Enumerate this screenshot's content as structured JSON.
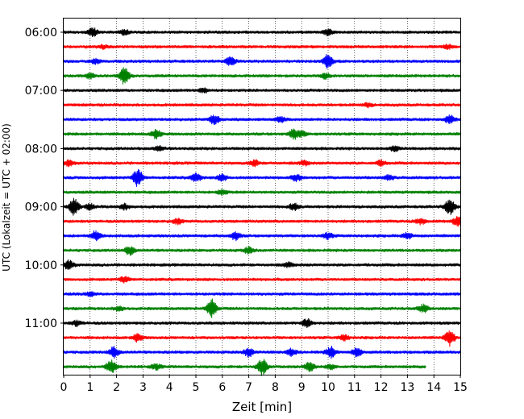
{
  "chart_data": {
    "type": "line",
    "title": "",
    "xlabel": "Zeit  [min]",
    "ylabel": "UTC (Lokalzeit = UTC + 02:00)",
    "xlim": [
      0,
      15
    ],
    "x_ticks": [
      0,
      1,
      2,
      3,
      4,
      5,
      6,
      7,
      8,
      9,
      10,
      11,
      12,
      13,
      14,
      15
    ],
    "x_tick_labels": [
      "0",
      "1",
      "2",
      "3",
      "4",
      "5",
      "6",
      "7",
      "8",
      "9",
      "10",
      "11",
      "12",
      "13",
      "14",
      "15"
    ],
    "y_tick_labels": [
      "06:00",
      "07:00",
      "08:00",
      "09:00",
      "10:00",
      "11:00"
    ],
    "grid": "vertical dotted",
    "trace_interval_min": 15,
    "color_cycle": [
      "#000000",
      "#ff0000",
      "#0000ff",
      "#008000"
    ],
    "traces": [
      {
        "start": "06:00",
        "end_min": 15,
        "events": [
          {
            "t": 1.1,
            "a": 0.9
          },
          {
            "t": 10.0,
            "a": 0.7
          },
          {
            "t": 2.3,
            "a": 0.5
          }
        ]
      },
      {
        "start": "06:15",
        "end_min": 15,
        "events": [
          {
            "t": 1.5,
            "a": 0.4
          },
          {
            "t": 14.5,
            "a": 0.5
          }
        ]
      },
      {
        "start": "06:30",
        "end_min": 15,
        "events": [
          {
            "t": 6.3,
            "a": 1.0
          },
          {
            "t": 10.0,
            "a": 1.6
          },
          {
            "t": 1.2,
            "a": 0.5
          }
        ]
      },
      {
        "start": "06:45",
        "end_min": 15,
        "events": [
          {
            "t": 2.3,
            "a": 1.9
          },
          {
            "t": 1.0,
            "a": 0.6
          },
          {
            "t": 9.9,
            "a": 0.6
          }
        ]
      },
      {
        "start": "07:00",
        "end_min": 15,
        "events": [
          {
            "t": 5.3,
            "a": 0.5
          }
        ]
      },
      {
        "start": "07:15",
        "end_min": 15,
        "events": [
          {
            "t": 11.5,
            "a": 0.4
          }
        ]
      },
      {
        "start": "07:30",
        "end_min": 15,
        "events": [
          {
            "t": 5.7,
            "a": 1.2
          },
          {
            "t": 8.2,
            "a": 0.6
          },
          {
            "t": 14.6,
            "a": 0.9
          }
        ]
      },
      {
        "start": "07:45",
        "end_min": 15,
        "events": [
          {
            "t": 3.5,
            "a": 1.0
          },
          {
            "t": 8.7,
            "a": 1.1
          },
          {
            "t": 9.0,
            "a": 0.6
          }
        ]
      },
      {
        "start": "08:00",
        "end_min": 15,
        "events": [
          {
            "t": 3.6,
            "a": 0.5
          },
          {
            "t": 12.5,
            "a": 0.6
          }
        ]
      },
      {
        "start": "08:15",
        "end_min": 15,
        "events": [
          {
            "t": 0.2,
            "a": 0.6
          },
          {
            "t": 7.2,
            "a": 0.7
          },
          {
            "t": 12.0,
            "a": 0.6
          },
          {
            "t": 9.1,
            "a": 0.5
          }
        ]
      },
      {
        "start": "08:30",
        "end_min": 15,
        "events": [
          {
            "t": 2.8,
            "a": 2.0
          },
          {
            "t": 5.0,
            "a": 1.0
          },
          {
            "t": 6.0,
            "a": 0.7
          },
          {
            "t": 8.8,
            "a": 0.7
          },
          {
            "t": 12.3,
            "a": 0.6
          }
        ]
      },
      {
        "start": "08:45",
        "end_min": 15,
        "events": [
          {
            "t": 6.0,
            "a": 0.6
          }
        ]
      },
      {
        "start": "09:00",
        "end_min": 15,
        "events": [
          {
            "t": 0.4,
            "a": 1.9
          },
          {
            "t": 14.6,
            "a": 2.0
          },
          {
            "t": 8.7,
            "a": 0.8
          },
          {
            "t": 2.3,
            "a": 0.6
          },
          {
            "t": 1.0,
            "a": 0.6
          }
        ]
      },
      {
        "start": "09:15",
        "end_min": 15,
        "events": [
          {
            "t": 14.9,
            "a": 1.0
          },
          {
            "t": 13.5,
            "a": 0.7
          },
          {
            "t": 4.3,
            "a": 0.6
          }
        ]
      },
      {
        "start": "09:30",
        "end_min": 15,
        "events": [
          {
            "t": 1.2,
            "a": 1.1
          },
          {
            "t": 6.5,
            "a": 0.9
          },
          {
            "t": 10.0,
            "a": 0.7
          },
          {
            "t": 13.0,
            "a": 0.7
          }
        ]
      },
      {
        "start": "09:45",
        "end_min": 15,
        "events": [
          {
            "t": 2.5,
            "a": 1.0
          },
          {
            "t": 7.0,
            "a": 0.7
          }
        ]
      },
      {
        "start": "10:00",
        "end_min": 15,
        "events": [
          {
            "t": 0.2,
            "a": 1.1
          },
          {
            "t": 8.5,
            "a": 0.5
          }
        ]
      },
      {
        "start": "10:15",
        "end_min": 15,
        "events": [
          {
            "t": 2.3,
            "a": 0.6
          }
        ]
      },
      {
        "start": "10:30",
        "end_min": 15,
        "events": [
          {
            "t": 1.0,
            "a": 0.4
          }
        ]
      },
      {
        "start": "10:45",
        "end_min": 15,
        "events": [
          {
            "t": 5.6,
            "a": 2.1
          },
          {
            "t": 13.6,
            "a": 0.9
          },
          {
            "t": 2.1,
            "a": 0.5
          }
        ]
      },
      {
        "start": "11:00",
        "end_min": 15,
        "events": [
          {
            "t": 9.2,
            "a": 1.0
          },
          {
            "t": 0.5,
            "a": 0.6
          }
        ]
      },
      {
        "start": "11:15",
        "end_min": 15,
        "events": [
          {
            "t": 14.6,
            "a": 1.9
          },
          {
            "t": 2.8,
            "a": 0.9
          },
          {
            "t": 10.6,
            "a": 0.7
          }
        ]
      },
      {
        "start": "11:30",
        "end_min": 15,
        "events": [
          {
            "t": 1.9,
            "a": 1.2
          },
          {
            "t": 7.0,
            "a": 1.0
          },
          {
            "t": 10.1,
            "a": 1.3
          },
          {
            "t": 11.1,
            "a": 1.1
          },
          {
            "t": 8.6,
            "a": 0.8
          }
        ]
      },
      {
        "start": "11:45",
        "end_min": 13.7,
        "events": [
          {
            "t": 1.8,
            "a": 1.7
          },
          {
            "t": 7.5,
            "a": 2.0
          },
          {
            "t": 9.3,
            "a": 1.2
          },
          {
            "t": 3.5,
            "a": 0.6
          },
          {
            "t": 10.1,
            "a": 0.5
          }
        ]
      }
    ]
  }
}
